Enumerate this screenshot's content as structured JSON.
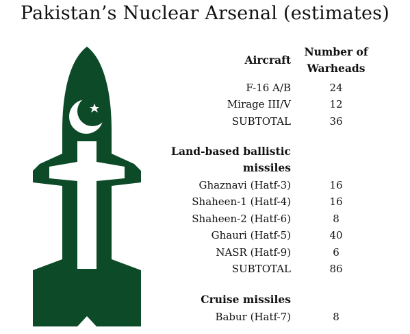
{
  "title": "Pakistan’s Nuclear Arsenal (estimates)",
  "table": {
    "value_header": "Number of Warheads",
    "sections": [
      {
        "heading": "Aircraft",
        "rows": [
          {
            "label": "F-16 A/B",
            "value": 24
          },
          {
            "label": "Mirage III/V",
            "value": 12
          },
          {
            "label": "SUBTOTAL",
            "value": 36
          }
        ]
      },
      {
        "heading": "Land-based ballistic missiles",
        "rows": [
          {
            "label": "Ghaznavi (Hatf-3)",
            "value": 16
          },
          {
            "label": "Shaheen-1 (Hatf-4)",
            "value": 16
          },
          {
            "label": "Shaheen-2 (Hatf-6)",
            "value": 8
          },
          {
            "label": "Ghauri (Hatf-5)",
            "value": 40
          },
          {
            "label": "NASR (Hatf-9)",
            "value": 6
          },
          {
            "label": "SUBTOTAL",
            "value": 86
          }
        ]
      },
      {
        "heading": "Cruise missiles",
        "rows": [
          {
            "label": "Babur (Hatf-7)",
            "value": 8
          }
        ]
      }
    ]
  }
}
